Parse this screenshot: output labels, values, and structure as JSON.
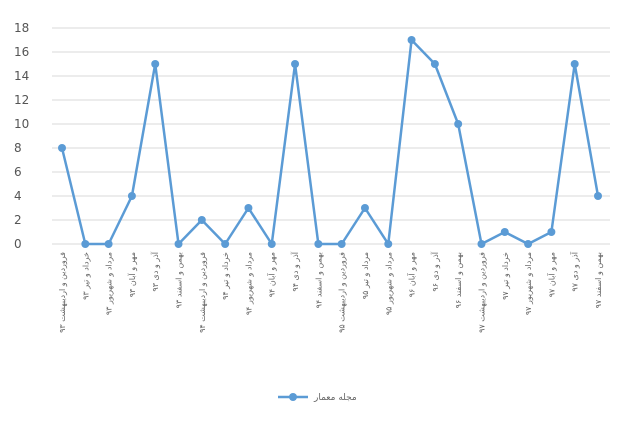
{
  "chart_data": {
    "type": "line",
    "categories": [
      "فروردین و اردیبهشت ۹۳",
      "خرداد و تیر ۹۳",
      "مرداد و شهریور ۹۳",
      "مهر و آبان ۹۳",
      "آذر و دی ۹۳",
      "بهمن و اسفند ۹۳",
      "فروردین و اردیبهشت ۹۴",
      "خرداد و تیر ۹۴",
      "مرداد و شهریور ۹۴",
      "مهر و آبان ۹۴",
      "آذر و دی ۹۴",
      "بهمن و اسفند ۹۴",
      "فروردین و اردیبهشت ۹۵",
      "مرداد و تیر ۹۵",
      "مرداد و شهریور ۹۵",
      "مهر و آبان ۹۶",
      "آذر و دی ۹۶",
      "بهمن و اسفند ۹۶",
      "فروردین و اردیبهشت ۹۷",
      "خرداد و تیر ۹۷",
      "مرداد و شهریور ۹۷",
      "مهر و آبان ۹۷",
      "آذر و دی ۹۷",
      "بهمن و اسفند ۹۷"
    ],
    "series": [
      {
        "name": "مجله معمار",
        "values": [
          8,
          0,
          0,
          4,
          15,
          0,
          2,
          0,
          3,
          0,
          15,
          0,
          0,
          3,
          0,
          17,
          15,
          10,
          0,
          1,
          0,
          1,
          15,
          4
        ]
      }
    ],
    "ylim": [
      0,
      18
    ],
    "yticks": [
      0,
      2,
      4,
      6,
      8,
      10,
      12,
      14,
      16,
      18
    ],
    "grid": true,
    "legend": "bottom",
    "colors": {
      "line": "#5b9bd5",
      "grid": "#d9d9d9"
    }
  }
}
